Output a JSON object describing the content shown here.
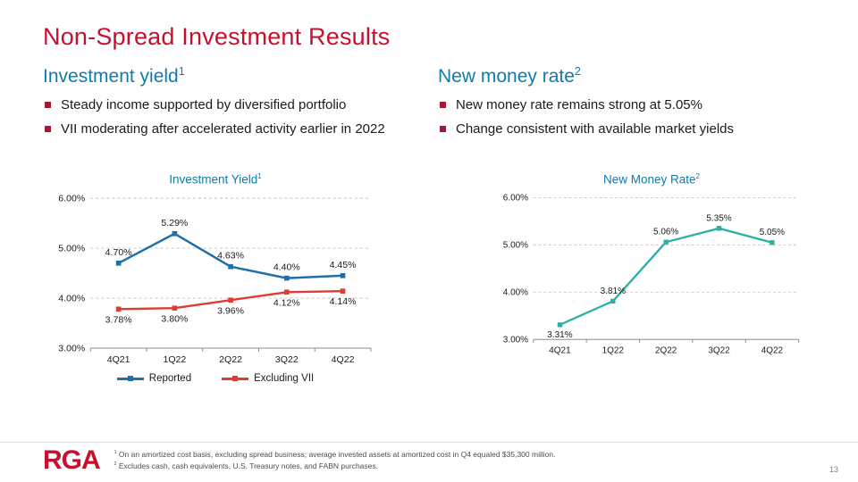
{
  "slide": {
    "title": "Non-Spread Investment Results",
    "page_number": "13",
    "logo_text": "RGA",
    "footnotes": [
      {
        "sup": "1",
        "text": "On an amortized cost basis, excluding spread business; average invested assets at amortized cost in Q4 equaled $35,300 million."
      },
      {
        "sup": "2",
        "text": "Excludes cash, cash equivalents, U.S. Treasury notes, and FABN purchases."
      }
    ]
  },
  "left_section": {
    "heading": "Investment yield",
    "heading_sup": "1",
    "bullets": [
      "Steady income supported by diversified portfolio",
      "VII moderating after accelerated activity earlier in 2022"
    ]
  },
  "right_section": {
    "heading": "New money rate",
    "heading_sup": "2",
    "bullets": [
      "New money rate remains strong at 5.05%",
      "Change consistent with available market yields"
    ]
  },
  "chart_data": [
    {
      "type": "line",
      "title": "Investment Yield",
      "title_sup": "1",
      "categories": [
        "4Q21",
        "1Q22",
        "2Q22",
        "3Q22",
        "4Q22"
      ],
      "ylim": [
        3,
        6
      ],
      "yticks": [
        "6.00%",
        "5.00%",
        "4.00%",
        "3.00%"
      ],
      "ytick_values": [
        6,
        5,
        4,
        3
      ],
      "grid": "dashed-horizontal",
      "legend_position": "bottom",
      "series": [
        {
          "name": "Reported",
          "color": "#1F6FA8",
          "values": [
            4.7,
            5.29,
            4.63,
            4.4,
            4.45
          ],
          "labels": [
            "4.70%",
            "5.29%",
            "4.63%",
            "4.40%",
            "4.45%"
          ],
          "label_position": "above"
        },
        {
          "name": "Excluding VII",
          "color": "#E03C31",
          "values": [
            3.78,
            3.8,
            3.96,
            4.12,
            4.14
          ],
          "labels": [
            "3.78%",
            "3.80%",
            "3.96%",
            "4.12%",
            "4.14%"
          ],
          "label_position": "below"
        }
      ]
    },
    {
      "type": "line",
      "title": "New Money Rate",
      "title_sup": "2",
      "categories": [
        "4Q21",
        "1Q22",
        "2Q22",
        "3Q22",
        "4Q22"
      ],
      "ylim": [
        3,
        6
      ],
      "yticks": [
        "6.00%",
        "5.00%",
        "4.00%",
        "3.00%"
      ],
      "ytick_values": [
        6,
        5,
        4,
        3
      ],
      "grid": "dashed-horizontal",
      "legend_position": "none",
      "series": [
        {
          "name": "New money rate",
          "color": "#2CB0A6",
          "values": [
            3.31,
            3.81,
            5.06,
            5.35,
            5.05
          ],
          "labels": [
            "3.31%",
            "3.81%",
            "5.06%",
            "5.35%",
            "5.05%"
          ],
          "label_position": "above",
          "label_positions": [
            "below",
            "above",
            "above",
            "above",
            "above"
          ]
        }
      ]
    }
  ]
}
